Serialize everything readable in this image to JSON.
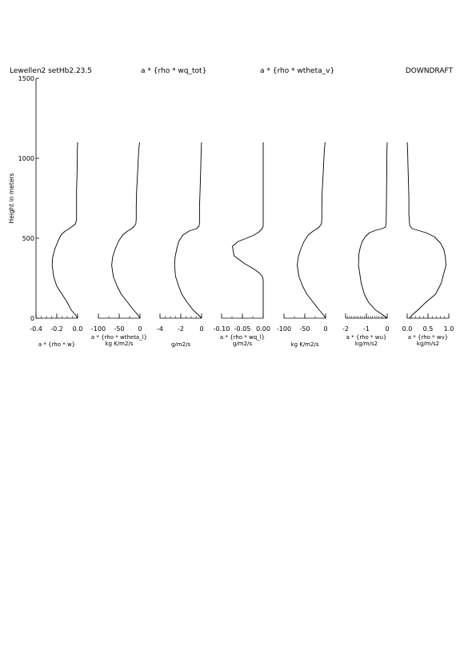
{
  "header": {
    "left": "Lewellen2 setHb2.23.5",
    "center_left": "a * {rho * wq_tot}",
    "center_right": "a * {rho * wtheta_v}",
    "right": "DOWNDRAFT"
  },
  "y_axis": {
    "label": "Height in meters",
    "range": [
      0,
      1500
    ],
    "ticks": [
      0,
      500,
      1000,
      1500
    ],
    "tick_labels": [
      "0",
      "500",
      "1000",
      "1500"
    ]
  },
  "chart_data": [
    {
      "type": "line",
      "xlabel": "a * {rho * w}",
      "xlim": [
        -0.4,
        0.0
      ],
      "ylim": [
        0,
        1500
      ],
      "ticks": [
        -0.4,
        -0.2,
        0.0
      ],
      "tick_labels": [
        "-0.4",
        "-0.2",
        "0.0"
      ],
      "series": [
        {
          "x": [
            0,
            -0.02,
            -0.06,
            -0.1,
            -0.15,
            -0.2,
            -0.23,
            -0.245,
            -0.24,
            -0.22,
            -0.19,
            -0.16,
            -0.12,
            -0.08,
            -0.05,
            -0.02,
            -0.01,
            -0.01,
            -0.01,
            -0.005,
            -0.004,
            -0.003,
            -0.002,
            -0.001,
            0.0
          ],
          "y": [
            0,
            20,
            50,
            100,
            150,
            200,
            260,
            330,
            380,
            430,
            480,
            520,
            545,
            560,
            575,
            590,
            620,
            700,
            800,
            900,
            950,
            1000,
            1050,
            1080,
            1100
          ]
        }
      ]
    },
    {
      "type": "line",
      "xlabel": "a * {rho * wtheta_l}",
      "units": "kg K/m2/s",
      "xlim": [
        -100,
        0
      ],
      "ylim": [
        0,
        1500
      ],
      "ticks": [
        -100,
        -50,
        0
      ],
      "tick_labels": [
        "-100",
        "-50",
        "0"
      ],
      "series": [
        {
          "x": [
            0,
            -5,
            -15,
            -30,
            -45,
            -55,
            -64,
            -68,
            -66,
            -60,
            -52,
            -42,
            -30,
            -20,
            -14,
            -10,
            -9,
            -9,
            -8,
            -6,
            -5,
            -4,
            -3,
            -2,
            -1
          ],
          "y": [
            0,
            20,
            50,
            100,
            150,
            200,
            260,
            330,
            380,
            430,
            480,
            520,
            545,
            560,
            575,
            590,
            620,
            700,
            800,
            900,
            950,
            1000,
            1050,
            1080,
            1100
          ]
        }
      ]
    },
    {
      "type": "line",
      "xlabel": "g/m2/s",
      "xlim": [
        -4,
        0
      ],
      "ylim": [
        0,
        1500
      ],
      "ticks": [
        -4,
        -2,
        0
      ],
      "tick_labels": [
        "-4",
        "-2",
        "0"
      ],
      "series": [
        {
          "x": [
            0,
            -0.3,
            -0.8,
            -1.4,
            -1.9,
            -2.2,
            -2.5,
            -2.6,
            -2.55,
            -2.4,
            -2.2,
            -1.8,
            -1.2,
            -0.5,
            -0.25,
            -0.2,
            -0.2,
            -0.15,
            -0.1,
            -0.08,
            -0.06,
            -0.04,
            -0.02,
            0
          ],
          "y": [
            0,
            20,
            50,
            100,
            150,
            200,
            260,
            330,
            380,
            430,
            480,
            520,
            545,
            560,
            575,
            600,
            700,
            800,
            900,
            950,
            1000,
            1050,
            1080,
            1100
          ]
        }
      ]
    },
    {
      "type": "line",
      "xlabel": "a * {rho * wq_l}",
      "units": "g/m2/s",
      "xlim": [
        -0.1,
        0.0
      ],
      "ylim": [
        0,
        1500
      ],
      "ticks": [
        -0.1,
        -0.05,
        0.0
      ],
      "tick_labels": [
        "-0.10",
        "-0.05",
        "0.00"
      ],
      "series": [
        {
          "x": [
            0,
            0,
            -0.002,
            -0.008,
            -0.018,
            -0.03,
            -0.044,
            -0.07,
            -0.074,
            -0.06,
            -0.04,
            -0.022,
            -0.01,
            -0.004,
            -0.001,
            0,
            0,
            0
          ],
          "y": [
            0,
            240,
            260,
            280,
            300,
            320,
            340,
            390,
            450,
            480,
            500,
            520,
            540,
            555,
            570,
            580,
            800,
            1100
          ]
        }
      ]
    },
    {
      "type": "line",
      "xlabel": "kg K/m2/s",
      "xlim": [
        -100,
        0
      ],
      "ylim": [
        0,
        1500
      ],
      "ticks": [
        -100,
        -50,
        0
      ],
      "tick_labels": [
        "-100",
        "-50",
        "0"
      ],
      "series": [
        {
          "x": [
            0,
            -5,
            -15,
            -30,
            -45,
            -55,
            -64,
            -68,
            -66,
            -60,
            -52,
            -42,
            -30,
            -20,
            -14,
            -10,
            -9,
            -9,
            -8,
            -6,
            -5,
            -4,
            -3,
            -2,
            -1
          ],
          "y": [
            0,
            20,
            50,
            100,
            150,
            200,
            260,
            330,
            380,
            430,
            480,
            520,
            545,
            560,
            575,
            590,
            620,
            700,
            800,
            900,
            950,
            1000,
            1050,
            1080,
            1100
          ]
        }
      ]
    },
    {
      "type": "line",
      "xlabel": "a * {rho * wu}",
      "units": "kg/m/s2",
      "xlim": [
        -2,
        0
      ],
      "ylim": [
        0,
        1500
      ],
      "ticks": [
        -2,
        -1,
        0
      ],
      "tick_labels": [
        "-2",
        "-1",
        "0"
      ],
      "series": [
        {
          "x": [
            0,
            -0.2,
            -0.55,
            -0.9,
            -1.1,
            -1.25,
            -1.38,
            -1.36,
            -1.3,
            -1.2,
            -1.05,
            -0.85,
            -0.55,
            -0.25,
            -0.08,
            -0.05,
            -0.04,
            -0.03,
            -0.02,
            -0.02,
            -0.01,
            0
          ],
          "y": [
            0,
            20,
            50,
            100,
            150,
            220,
            330,
            400,
            440,
            480,
            510,
            535,
            550,
            560,
            570,
            600,
            700,
            800,
            900,
            1000,
            1050,
            1100
          ]
        }
      ]
    },
    {
      "type": "line",
      "xlabel": "a * {rho * wv}",
      "units": "kg/m/s2",
      "xlim": [
        0.0,
        1.0
      ],
      "ylim": [
        0,
        1500
      ],
      "ticks": [
        0.0,
        0.5,
        1.0
      ],
      "tick_labels": [
        "0.0",
        "0.5",
        "1.0"
      ],
      "series": [
        {
          "x": [
            0.05,
            0.12,
            0.25,
            0.45,
            0.68,
            0.82,
            0.9,
            0.93,
            0.92,
            0.88,
            0.8,
            0.65,
            0.45,
            0.25,
            0.12,
            0.06,
            0.04,
            0.04,
            0.03,
            0.02,
            0.01,
            0.0
          ],
          "y": [
            0,
            20,
            50,
            100,
            150,
            220,
            300,
            330,
            380,
            430,
            470,
            510,
            535,
            550,
            560,
            580,
            650,
            750,
            850,
            950,
            1050,
            1100
          ]
        }
      ]
    }
  ]
}
